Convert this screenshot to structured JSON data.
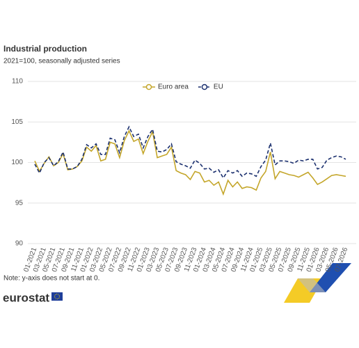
{
  "chart_data": {
    "type": "line",
    "title": "Industrial production",
    "subtitle": "2021=100, seasonally adjusted series",
    "note": "Note: y-axis does not start at 0.",
    "logo_text": "eurostat",
    "categories": [
      "01-2021",
      null,
      "03-2021",
      null,
      "05-2021",
      null,
      "07-2021",
      null,
      "09-2021",
      null,
      "11-2021",
      null,
      "01-2022",
      null,
      "03-2022",
      null,
      "05-2022",
      null,
      "07-2022",
      null,
      "09-2022",
      null,
      "11-2022",
      null,
      "01-2023",
      null,
      "03-2023",
      null,
      "05-2023",
      null,
      "07-2023",
      null,
      "09-2023",
      null,
      "11-2023",
      null,
      "01-2024",
      null,
      "03-2024",
      null,
      "05-2024",
      null,
      "07-2024",
      null,
      "09-2024",
      null,
      "11-2024",
      null,
      "01-2025",
      null,
      "03-2025",
      null,
      "05-2025",
      null,
      "07-2025",
      null,
      "09-2025",
      null,
      "11-2025",
      null,
      "01-2026",
      null,
      "03-2026",
      null,
      "05-2026",
      null,
      "07-2026"
    ],
    "series": [
      {
        "name": "Euro area",
        "color": "#c4a62a",
        "dashed": false,
        "values": [
          100.2,
          98.9,
          99.9,
          100.7,
          99.6,
          100.0,
          101.1,
          99.1,
          99.2,
          99.5,
          100.2,
          101.9,
          101.4,
          102.1,
          100.2,
          100.4,
          102.5,
          102.3,
          100.6,
          102.7,
          103.9,
          102.6,
          102.9,
          101.1,
          102.6,
          103.8,
          100.6,
          100.8,
          101.0,
          101.9,
          99.0,
          98.7,
          98.5,
          97.9,
          98.9,
          98.7,
          97.6,
          97.8,
          97.2,
          97.6,
          96.1,
          97.8,
          97.0,
          97.6,
          96.8,
          97.0,
          96.9,
          96.6,
          98.1,
          98.9,
          101.3,
          98.0,
          98.9,
          98.7,
          98.5,
          98.4,
          98.2,
          98.5,
          98.8,
          98.1,
          97.3,
          97.6,
          98.0,
          98.4,
          98.5,
          98.4,
          98.3
        ]
      },
      {
        "name": "EU",
        "color": "#1a2f6e",
        "dashed": true,
        "values": [
          99.8,
          98.7,
          100.0,
          100.6,
          99.6,
          100.1,
          101.3,
          99.2,
          99.2,
          99.5,
          100.4,
          102.2,
          101.8,
          102.3,
          101.0,
          101.0,
          103.0,
          102.8,
          101.2,
          103.2,
          104.4,
          103.2,
          103.5,
          101.8,
          103.2,
          104.1,
          101.4,
          101.3,
          101.6,
          102.3,
          100.1,
          99.8,
          99.6,
          99.3,
          100.3,
          99.9,
          99.2,
          99.3,
          98.8,
          99.1,
          98.1,
          99.0,
          98.7,
          99.0,
          98.3,
          98.7,
          98.6,
          98.3,
          99.5,
          100.3,
          102.4,
          99.7,
          100.2,
          100.2,
          100.1,
          99.9,
          100.3,
          100.2,
          100.4,
          100.4,
          99.2,
          99.4,
          100.3,
          100.6,
          100.8,
          100.7,
          100.4
        ]
      }
    ],
    "ylim": [
      90,
      110
    ],
    "yticks": [
      90,
      95,
      100,
      105,
      110
    ],
    "grid": true,
    "legend": "top"
  }
}
